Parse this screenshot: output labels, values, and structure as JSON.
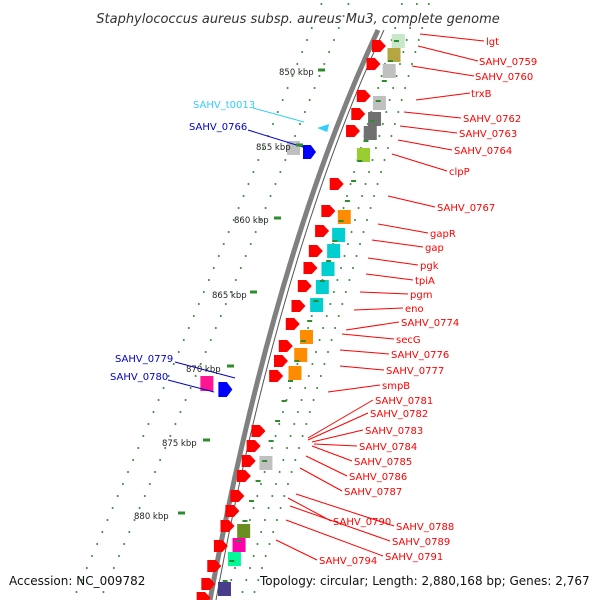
{
  "title": "Staphylococcus aureus subsp. aureus Mu3, complete genome",
  "footer": {
    "accession": "Accession: NC_009782",
    "topology": "Topology: circular; Length: 2,880,168 bp; Genes: 2,767"
  },
  "colors": {
    "forward": "#ff0000",
    "reverse": "#0000ff",
    "trna": "#33ccff",
    "backbone": "#808080",
    "ticks": "#228b22"
  },
  "position_ticks": [
    "850 kbp",
    "855 kbp",
    "860 kbp",
    "865 kbp",
    "870 kbp",
    "875 kbp",
    "880 kbp"
  ],
  "left_labels": [
    "SAHV_t0013",
    "SAHV_0766",
    "SAHV_0779",
    "SAHV_0780"
  ],
  "right_labels": [
    "lgt",
    "SAHV_0759",
    "SAHV_0760",
    "trxB",
    "SAHV_0762",
    "SAHV_0763",
    "SAHV_0764",
    "clpP",
    "SAHV_0767",
    "gapR",
    "gap",
    "pgk",
    "tpiA",
    "pgm",
    "eno",
    "SAHV_0774",
    "secG",
    "SAHV_0776",
    "SAHV_0777",
    "smpB",
    "SAHV_0781",
    "SAHV_0782",
    "SAHV_0783",
    "SAHV_0784",
    "SAHV_0785",
    "SAHV_0786",
    "SAHV_0787",
    "SAHV_0790",
    "SAHV_0788",
    "SAHV_0789",
    "SAHV_0791",
    "SAHV_0794"
  ]
}
